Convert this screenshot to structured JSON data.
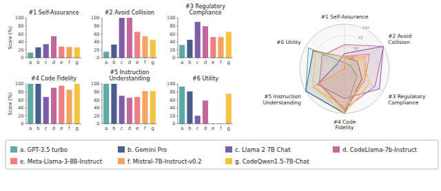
{
  "chart_data": [
    {
      "type": "bar",
      "title": "#1 Self-Assurance",
      "y_label": "Score (%)",
      "categories": [
        "a",
        "b",
        "c",
        "d",
        "e",
        "f",
        "g"
      ],
      "values": [
        13,
        26,
        34,
        54,
        28,
        27,
        26
      ],
      "colors": [
        "#5BAAA5",
        "#4A5E8A",
        "#7B5EA7",
        "#C4679A",
        "#F08080",
        "#F4A460",
        "#F5C242"
      ],
      "ylim": [
        0,
        100
      ],
      "yticks": [
        0,
        20,
        40,
        60,
        80,
        100
      ],
      "grid": false
    },
    {
      "type": "bar",
      "title": "#2 Avoid Collision",
      "categories": [
        "a",
        "b",
        "c",
        "d",
        "e",
        "f",
        "g"
      ],
      "values": [
        15,
        33,
        100,
        100,
        65,
        54,
        45
      ],
      "colors": [
        "#5BAAA5",
        "#4A5E8A",
        "#7B5EA7",
        "#C4679A",
        "#F08080",
        "#F4A460",
        "#F5C242"
      ],
      "ylim": [
        0,
        100
      ],
      "yticks": [
        0,
        20,
        40,
        60,
        80,
        100
      ],
      "grid": false
    },
    {
      "type": "bar",
      "title": "#3 Regulatory\nCompliance",
      "categories": [
        "a",
        "b",
        "c",
        "d",
        "e",
        "f",
        "g"
      ],
      "values": [
        32,
        45,
        90,
        79,
        52,
        52,
        65
      ],
      "colors": [
        "#5BAAA5",
        "#4A5E8A",
        "#7B5EA7",
        "#C4679A",
        "#F08080",
        "#F4A460",
        "#F5C242"
      ],
      "ylim": [
        0,
        100
      ],
      "yticks": [
        0,
        20,
        40,
        60,
        80,
        100
      ],
      "grid": false
    },
    {
      "type": "bar",
      "title": "#4 Code Fidelity",
      "y_label": "Score (%)",
      "categories": [
        "a",
        "b",
        "c",
        "d",
        "e",
        "f",
        "g"
      ],
      "values": [
        100,
        100,
        67,
        90,
        95,
        85,
        100
      ],
      "colors": [
        "#5BAAA5",
        "#4A5E8A",
        "#7B5EA7",
        "#C4679A",
        "#F08080",
        "#F4A460",
        "#F5C242"
      ],
      "ylim": [
        0,
        100
      ],
      "yticks": [
        0,
        20,
        40,
        60,
        80,
        100
      ],
      "grid": false
    },
    {
      "type": "bar",
      "title": "#5 Instruction\nUnderstanding",
      "categories": [
        "a",
        "b",
        "c",
        "d",
        "e",
        "f",
        "g"
      ],
      "values": [
        100,
        100,
        70,
        65,
        67,
        82,
        82
      ],
      "colors": [
        "#5BAAA5",
        "#4A5E8A",
        "#7B5EA7",
        "#C4679A",
        "#F08080",
        "#F4A460",
        "#F5C242"
      ],
      "ylim": [
        0,
        100
      ],
      "yticks": [
        0,
        20,
        40,
        60,
        80,
        100
      ],
      "grid": false
    },
    {
      "type": "bar",
      "title": "#6 Utility",
      "categories": [
        "a",
        "b",
        "c",
        "d",
        "e",
        "f",
        "g"
      ],
      "values": [
        93,
        81,
        20,
        58,
        0,
        0,
        75
      ],
      "colors": [
        "#5BAAA5",
        "#4A5E8A",
        "#7B5EA7",
        "#C4679A",
        "#F08080",
        "#F4A460",
        "#F5C242"
      ],
      "ylim": [
        0,
        100
      ],
      "yticks": [
        0,
        20,
        40,
        60,
        80,
        100
      ],
      "grid": false
    },
    {
      "type": "radar",
      "categories": [
        "#1 Self-Assurance",
        "#2 Avoid\nCollision",
        "#3 Regulatory\nCompliance",
        "#4 Code\nFidelity",
        "#5 Instruction\nUnderstanding",
        "#6 Utility"
      ],
      "series": [
        {
          "name": "a. GPT-3.5 turbo",
          "color": "#5BAAA5",
          "values": [
            13,
            15,
            32,
            100,
            100,
            93
          ]
        },
        {
          "name": "b. Gemini Pro",
          "color": "#4A5E8A",
          "values": [
            26,
            33,
            45,
            100,
            100,
            81
          ]
        },
        {
          "name": "c. Llama 2 7B Chat",
          "color": "#7B5EA7",
          "values": [
            34,
            100,
            90,
            67,
            70,
            20
          ]
        },
        {
          "name": "d. CodeLlama-7b-Instruct",
          "color": "#C4679A",
          "values": [
            54,
            100,
            79,
            90,
            65,
            58
          ]
        },
        {
          "name": "e. Meta-Llama-3-8B-Instruct",
          "color": "#F08080",
          "values": [
            28,
            65,
            52,
            95,
            67,
            0
          ]
        },
        {
          "name": "f. Mistral-7B-Instruct-v0.2",
          "color": "#F4A460",
          "values": [
            27,
            54,
            52,
            85,
            82,
            0
          ]
        },
        {
          "name": "g. CodeQwen1.5-7B-Chat",
          "color": "#F5C242",
          "values": [
            26,
            45,
            65,
            100,
            82,
            75
          ]
        }
      ],
      "ylim": [
        0,
        100
      ],
      "yticks": [
        25,
        50,
        75,
        100
      ],
      "grid": true,
      "legend": "bottom"
    }
  ]
}
